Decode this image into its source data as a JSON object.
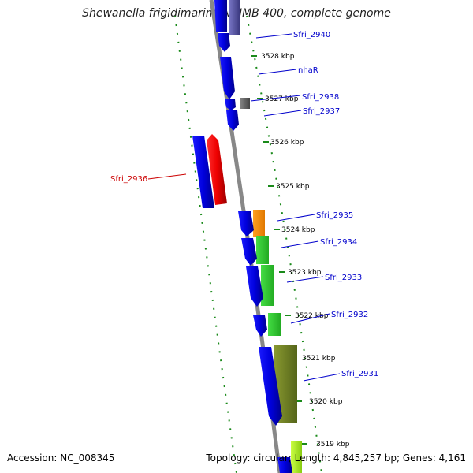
{
  "title": "Shewanella frigidimarina NCIMB 400, complete genome",
  "footer": {
    "accession": "Accession: NC_008345",
    "summary": "Topology: circular; Length: 4,845,257 bp; Genes: 4,161"
  },
  "colors": {
    "backbone": "#888888",
    "scale_ticks": "#1a8a1a",
    "cds_blue": "#0000ee",
    "cds_red": "#ee0000",
    "label_blue": "#0000cc",
    "label_red": "#cc0000"
  },
  "kbp_labels": [
    "3528 kbp",
    "3527 kbp",
    "3526 kbp",
    "3525 kbp",
    "3524 kbp",
    "3523 kbp",
    "3522 kbp",
    "3521 kbp",
    "3520 kbp",
    "3519 kbp"
  ],
  "gene_labels": [
    "Sfri_2940",
    "nhaR",
    "Sfri_2938",
    "Sfri_2937",
    "Sfri_2936",
    "Sfri_2935",
    "Sfri_2934",
    "Sfri_2933",
    "Sfri_2932",
    "Sfri_2931"
  ]
}
